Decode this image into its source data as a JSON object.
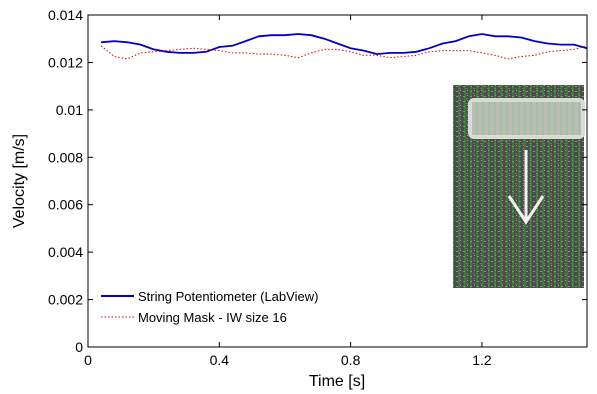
{
  "chart_data": {
    "type": "line",
    "title": "",
    "xlabel": "Time [s]",
    "ylabel": "Velocity [m/s]",
    "xlim": [
      0,
      1.52
    ],
    "ylim": [
      0,
      0.014
    ],
    "xticks": [
      0,
      0.4,
      0.8,
      1.2
    ],
    "xtick_labels": [
      "0",
      "0.4",
      "0.8",
      "1.2"
    ],
    "yticks": [
      0,
      0.002,
      0.004,
      0.006,
      0.008,
      0.01,
      0.012,
      0.014
    ],
    "ytick_labels": [
      "0",
      "0.002",
      "0.004",
      "0.006",
      "0.008",
      "0.01",
      "0.012",
      "0.014"
    ],
    "grid": false,
    "legend_position": "bottom-left",
    "series": [
      {
        "name": "String Potentiometer (LabView)",
        "color": "#0000cc",
        "style": "solid",
        "x": [
          0.04,
          0.08,
          0.12,
          0.16,
          0.2,
          0.24,
          0.28,
          0.32,
          0.36,
          0.4,
          0.44,
          0.48,
          0.52,
          0.56,
          0.6,
          0.64,
          0.68,
          0.72,
          0.76,
          0.8,
          0.84,
          0.88,
          0.92,
          0.96,
          1.0,
          1.04,
          1.08,
          1.12,
          1.16,
          1.2,
          1.24,
          1.28,
          1.32,
          1.36,
          1.4,
          1.44,
          1.48,
          1.52
        ],
        "y": [
          0.01285,
          0.0129,
          0.01285,
          0.01275,
          0.01255,
          0.01245,
          0.0124,
          0.0124,
          0.01245,
          0.01265,
          0.0127,
          0.0129,
          0.0131,
          0.01315,
          0.01315,
          0.0132,
          0.01315,
          0.013,
          0.0128,
          0.0126,
          0.0125,
          0.01235,
          0.0124,
          0.0124,
          0.01245,
          0.0126,
          0.0128,
          0.0129,
          0.0131,
          0.0132,
          0.0131,
          0.0131,
          0.01305,
          0.0129,
          0.0128,
          0.01275,
          0.01275,
          0.0126
        ]
      },
      {
        "name": "Moving Mask - IW size 16",
        "color": "#e00000",
        "style": "dotted",
        "x": [
          0.04,
          0.08,
          0.12,
          0.16,
          0.2,
          0.24,
          0.28,
          0.32,
          0.36,
          0.4,
          0.44,
          0.48,
          0.52,
          0.56,
          0.6,
          0.64,
          0.68,
          0.72,
          0.76,
          0.8,
          0.84,
          0.88,
          0.92,
          0.96,
          1.0,
          1.04,
          1.08,
          1.12,
          1.16,
          1.2,
          1.24,
          1.28,
          1.32,
          1.36,
          1.4,
          1.44,
          1.48,
          1.52
        ],
        "y": [
          0.0127,
          0.01225,
          0.01215,
          0.0124,
          0.01245,
          0.0125,
          0.01255,
          0.0126,
          0.01255,
          0.0125,
          0.0124,
          0.0124,
          0.01235,
          0.01235,
          0.0123,
          0.0122,
          0.0124,
          0.01255,
          0.01255,
          0.01245,
          0.0123,
          0.0123,
          0.0122,
          0.01225,
          0.0123,
          0.01245,
          0.0125,
          0.0125,
          0.0125,
          0.0124,
          0.0123,
          0.01215,
          0.01225,
          0.0123,
          0.01245,
          0.0125,
          0.01255,
          0.0127
        ]
      }
    ],
    "inset": {
      "description_icon": "piv-vector-field-image-with-down-arrow",
      "colors": {
        "background": "#4a4d48",
        "vectors": "#22cc22",
        "mask": "#b9bdb6",
        "arrow": "#f2f2f2"
      }
    }
  }
}
